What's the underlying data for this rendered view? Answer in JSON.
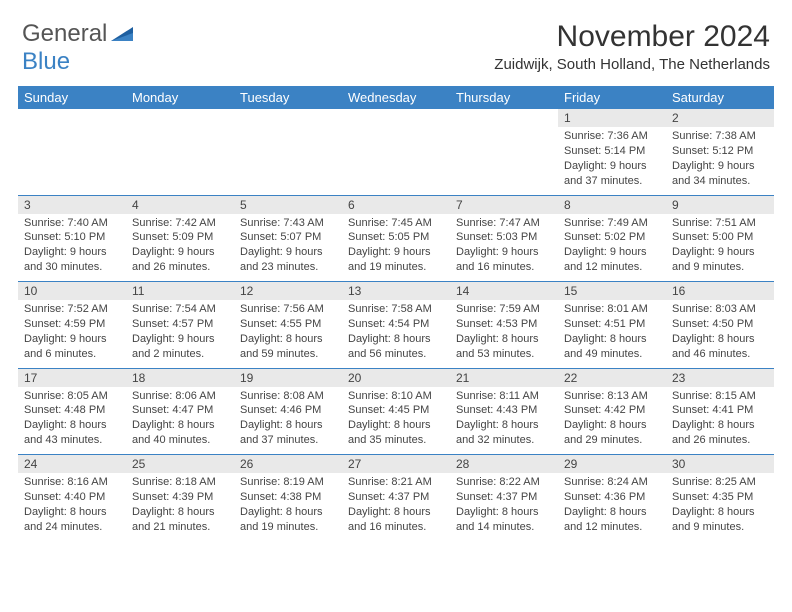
{
  "logo": {
    "text1": "General",
    "text2": "Blue",
    "color1": "#555555",
    "color2": "#3b82c4"
  },
  "title": "November 2024",
  "location": "Zuidwijk, South Holland, The Netherlands",
  "columns": [
    "Sunday",
    "Monday",
    "Tuesday",
    "Wednesday",
    "Thursday",
    "Friday",
    "Saturday"
  ],
  "header_bg": "#3b82c4",
  "header_fg": "#ffffff",
  "daynum_bg": "#e9e9e9",
  "border_color": "#3b82c4",
  "text_color": "#444444",
  "weeks": [
    [
      null,
      null,
      null,
      null,
      null,
      {
        "n": "1",
        "sr": "Sunrise: 7:36 AM",
        "ss": "Sunset: 5:14 PM",
        "dl": "Daylight: 9 hours and 37 minutes."
      },
      {
        "n": "2",
        "sr": "Sunrise: 7:38 AM",
        "ss": "Sunset: 5:12 PM",
        "dl": "Daylight: 9 hours and 34 minutes."
      }
    ],
    [
      {
        "n": "3",
        "sr": "Sunrise: 7:40 AM",
        "ss": "Sunset: 5:10 PM",
        "dl": "Daylight: 9 hours and 30 minutes."
      },
      {
        "n": "4",
        "sr": "Sunrise: 7:42 AM",
        "ss": "Sunset: 5:09 PM",
        "dl": "Daylight: 9 hours and 26 minutes."
      },
      {
        "n": "5",
        "sr": "Sunrise: 7:43 AM",
        "ss": "Sunset: 5:07 PM",
        "dl": "Daylight: 9 hours and 23 minutes."
      },
      {
        "n": "6",
        "sr": "Sunrise: 7:45 AM",
        "ss": "Sunset: 5:05 PM",
        "dl": "Daylight: 9 hours and 19 minutes."
      },
      {
        "n": "7",
        "sr": "Sunrise: 7:47 AM",
        "ss": "Sunset: 5:03 PM",
        "dl": "Daylight: 9 hours and 16 minutes."
      },
      {
        "n": "8",
        "sr": "Sunrise: 7:49 AM",
        "ss": "Sunset: 5:02 PM",
        "dl": "Daylight: 9 hours and 12 minutes."
      },
      {
        "n": "9",
        "sr": "Sunrise: 7:51 AM",
        "ss": "Sunset: 5:00 PM",
        "dl": "Daylight: 9 hours and 9 minutes."
      }
    ],
    [
      {
        "n": "10",
        "sr": "Sunrise: 7:52 AM",
        "ss": "Sunset: 4:59 PM",
        "dl": "Daylight: 9 hours and 6 minutes."
      },
      {
        "n": "11",
        "sr": "Sunrise: 7:54 AM",
        "ss": "Sunset: 4:57 PM",
        "dl": "Daylight: 9 hours and 2 minutes."
      },
      {
        "n": "12",
        "sr": "Sunrise: 7:56 AM",
        "ss": "Sunset: 4:55 PM",
        "dl": "Daylight: 8 hours and 59 minutes."
      },
      {
        "n": "13",
        "sr": "Sunrise: 7:58 AM",
        "ss": "Sunset: 4:54 PM",
        "dl": "Daylight: 8 hours and 56 minutes."
      },
      {
        "n": "14",
        "sr": "Sunrise: 7:59 AM",
        "ss": "Sunset: 4:53 PM",
        "dl": "Daylight: 8 hours and 53 minutes."
      },
      {
        "n": "15",
        "sr": "Sunrise: 8:01 AM",
        "ss": "Sunset: 4:51 PM",
        "dl": "Daylight: 8 hours and 49 minutes."
      },
      {
        "n": "16",
        "sr": "Sunrise: 8:03 AM",
        "ss": "Sunset: 4:50 PM",
        "dl": "Daylight: 8 hours and 46 minutes."
      }
    ],
    [
      {
        "n": "17",
        "sr": "Sunrise: 8:05 AM",
        "ss": "Sunset: 4:48 PM",
        "dl": "Daylight: 8 hours and 43 minutes."
      },
      {
        "n": "18",
        "sr": "Sunrise: 8:06 AM",
        "ss": "Sunset: 4:47 PM",
        "dl": "Daylight: 8 hours and 40 minutes."
      },
      {
        "n": "19",
        "sr": "Sunrise: 8:08 AM",
        "ss": "Sunset: 4:46 PM",
        "dl": "Daylight: 8 hours and 37 minutes."
      },
      {
        "n": "20",
        "sr": "Sunrise: 8:10 AM",
        "ss": "Sunset: 4:45 PM",
        "dl": "Daylight: 8 hours and 35 minutes."
      },
      {
        "n": "21",
        "sr": "Sunrise: 8:11 AM",
        "ss": "Sunset: 4:43 PM",
        "dl": "Daylight: 8 hours and 32 minutes."
      },
      {
        "n": "22",
        "sr": "Sunrise: 8:13 AM",
        "ss": "Sunset: 4:42 PM",
        "dl": "Daylight: 8 hours and 29 minutes."
      },
      {
        "n": "23",
        "sr": "Sunrise: 8:15 AM",
        "ss": "Sunset: 4:41 PM",
        "dl": "Daylight: 8 hours and 26 minutes."
      }
    ],
    [
      {
        "n": "24",
        "sr": "Sunrise: 8:16 AM",
        "ss": "Sunset: 4:40 PM",
        "dl": "Daylight: 8 hours and 24 minutes."
      },
      {
        "n": "25",
        "sr": "Sunrise: 8:18 AM",
        "ss": "Sunset: 4:39 PM",
        "dl": "Daylight: 8 hours and 21 minutes."
      },
      {
        "n": "26",
        "sr": "Sunrise: 8:19 AM",
        "ss": "Sunset: 4:38 PM",
        "dl": "Daylight: 8 hours and 19 minutes."
      },
      {
        "n": "27",
        "sr": "Sunrise: 8:21 AM",
        "ss": "Sunset: 4:37 PM",
        "dl": "Daylight: 8 hours and 16 minutes."
      },
      {
        "n": "28",
        "sr": "Sunrise: 8:22 AM",
        "ss": "Sunset: 4:37 PM",
        "dl": "Daylight: 8 hours and 14 minutes."
      },
      {
        "n": "29",
        "sr": "Sunrise: 8:24 AM",
        "ss": "Sunset: 4:36 PM",
        "dl": "Daylight: 8 hours and 12 minutes."
      },
      {
        "n": "30",
        "sr": "Sunrise: 8:25 AM",
        "ss": "Sunset: 4:35 PM",
        "dl": "Daylight: 8 hours and 9 minutes."
      }
    ]
  ]
}
